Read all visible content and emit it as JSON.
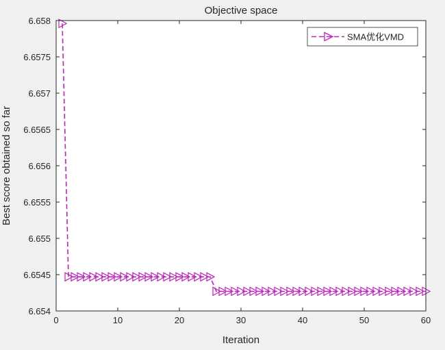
{
  "chart_data": {
    "type": "line",
    "title": "Objective space",
    "xlabel": "Iteration",
    "ylabel": "Best score obtained so far",
    "xlim": [
      0,
      60
    ],
    "ylim": [
      6.654,
      6.658
    ],
    "xticks": [
      0,
      10,
      20,
      30,
      40,
      50,
      60
    ],
    "xtick_labels": [
      "0",
      "10",
      "20",
      "30",
      "40",
      "50",
      "60"
    ],
    "yticks": [
      6.654,
      6.6545,
      6.655,
      6.6555,
      6.656,
      6.6565,
      6.657,
      6.6575,
      6.658
    ],
    "ytick_labels": [
      "6.654",
      "6.6545",
      "6.655",
      "6.6555",
      "6.656",
      "6.6565",
      "6.657",
      "6.6575",
      "6.658"
    ],
    "grid": false,
    "legend_position": "top-right",
    "series": [
      {
        "name": "SMA优化VMD",
        "color": "#C020C0",
        "line_style": "dashed",
        "marker": "triangle-right",
        "x": [
          1,
          2,
          3,
          4,
          5,
          6,
          7,
          8,
          9,
          10,
          11,
          12,
          13,
          14,
          15,
          16,
          17,
          18,
          19,
          20,
          21,
          22,
          23,
          24,
          25,
          26,
          27,
          28,
          29,
          30,
          31,
          32,
          33,
          34,
          35,
          36,
          37,
          38,
          39,
          40,
          41,
          42,
          43,
          44,
          45,
          46,
          47,
          48,
          49,
          50,
          51,
          52,
          53,
          54,
          55,
          56,
          57,
          58,
          59,
          60
        ],
        "y": [
          6.65796,
          6.65447,
          6.65447,
          6.65447,
          6.65447,
          6.65447,
          6.65447,
          6.65447,
          6.65447,
          6.65447,
          6.65447,
          6.65447,
          6.65447,
          6.65447,
          6.65447,
          6.65447,
          6.65447,
          6.65447,
          6.65447,
          6.65447,
          6.65447,
          6.65447,
          6.65447,
          6.65447,
          6.65447,
          6.65427,
          6.65427,
          6.65427,
          6.65427,
          6.65427,
          6.65427,
          6.65427,
          6.65427,
          6.65427,
          6.65427,
          6.65427,
          6.65427,
          6.65427,
          6.65427,
          6.65427,
          6.65427,
          6.65427,
          6.65427,
          6.65427,
          6.65427,
          6.65427,
          6.65427,
          6.65427,
          6.65427,
          6.65427,
          6.65427,
          6.65427,
          6.65427,
          6.65427,
          6.65427,
          6.65427,
          6.65427,
          6.65427,
          6.65427,
          6.65427
        ]
      }
    ]
  }
}
